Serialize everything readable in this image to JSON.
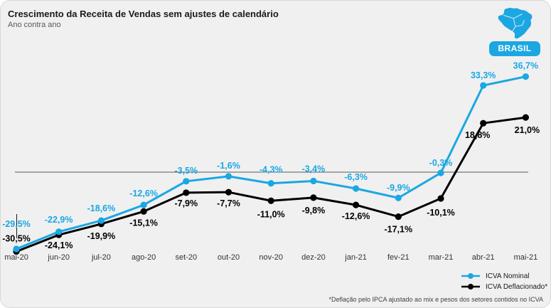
{
  "header": {
    "title": "Crescimento da Receita de Vendas sem ajustes de calendário",
    "subtitle": "Ano contra ano",
    "region_badge": "BRASIL"
  },
  "footnote": "*Deflação pelo IPCA ajustado ao mix e pesos dos setores contidos no ICVA",
  "colors": {
    "accent_blue": "#1BA7E2",
    "series_black": "#000000",
    "card_bg": "#f0f0f1",
    "zero_line": "#595959",
    "axis_text": "#333333"
  },
  "chart_data": {
    "type": "line",
    "title": "Crescimento da Receita de Vendas sem ajustes de calendário",
    "subtitle": "Ano contra ano",
    "categories": [
      "mai-20",
      "jun-20",
      "jul-20",
      "ago-20",
      "set-20",
      "out-20",
      "nov-20",
      "dez-20",
      "jan-21",
      "fev-21",
      "mar-21",
      "abr-21",
      "mai-21"
    ],
    "series": [
      {
        "name": "ICVA Deflacionado*",
        "color": "#000000",
        "values": [
          -30.5,
          -24.1,
          -19.9,
          -15.1,
          -7.9,
          -7.7,
          -11.0,
          -9.8,
          -12.6,
          -17.1,
          -10.1,
          18.8,
          21.0
        ],
        "labels": [
          "-30,5%",
          "-24,1%",
          "-19,9%",
          "-15,1%",
          "-7,9%",
          "-7,7%",
          "-11,0%",
          "-9,8%",
          "-12,6%",
          "-17,1%",
          "-10,1%",
          "18,8%",
          "21,0%"
        ]
      },
      {
        "name": "ICVA Nominal",
        "color": "#1BA7E2",
        "values": [
          -29.5,
          -22.9,
          -18.6,
          -12.6,
          -3.5,
          -1.6,
          -4.3,
          -3.4,
          -6.3,
          -9.9,
          -0.3,
          33.3,
          36.7
        ],
        "labels": [
          "-29,5%",
          "-22,9%",
          "-18,6%",
          "-12,6%",
          "-3,5%",
          "-1,6%",
          "-4,3%",
          "-3,4%",
          "-6,3%",
          "-9,9%",
          "-0,3%",
          "33,3%",
          "36,7%"
        ]
      }
    ],
    "ylim": [
      -35,
      42
    ],
    "baseline": 0,
    "grid": false,
    "y_axis_labels": false,
    "legend_position": "bottom-right",
    "label_layout": {
      "deflacionado_dy": [
        -14,
        19,
        21,
        20,
        19,
        20,
        23,
        22,
        20,
        22,
        24,
        21,
        22
      ],
      "deflacionado_dx": [
        0,
        0,
        0,
        0,
        0,
        0,
        0,
        0,
        0,
        0,
        0,
        -8,
        2
      ],
      "nominal_dy": [
        -31,
        -13,
        -13,
        -12,
        -11,
        -11,
        -15,
        -13,
        -12,
        -10,
        -10,
        -10,
        -11
      ],
      "nominal_dx": [
        0,
        0,
        0,
        0,
        0,
        0,
        0,
        0,
        0,
        0,
        0,
        0,
        0
      ]
    },
    "legend": [
      "ICVA Nominal",
      "ICVA Deflacionado*"
    ]
  }
}
